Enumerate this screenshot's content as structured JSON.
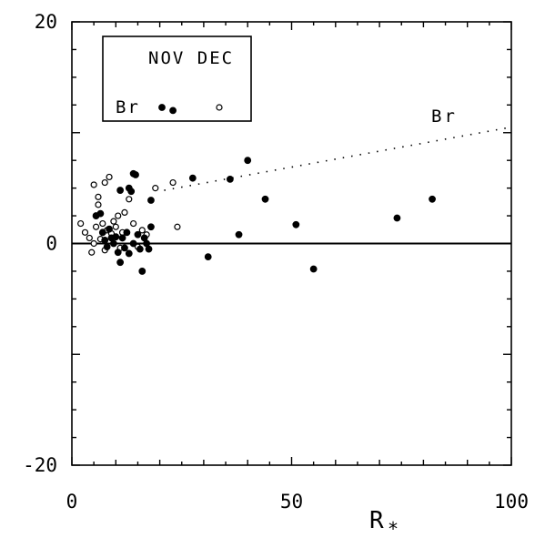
{
  "chart_data": {
    "type": "scatter",
    "title": "",
    "xlabel": "R*",
    "ylabel": "",
    "xlim": [
      0,
      100
    ],
    "ylim": [
      -20,
      20
    ],
    "grid": false,
    "legend_position": "top-left",
    "x_tick_labels": [
      "0",
      "50",
      "100"
    ],
    "y_tick_labels": [
      "20",
      "0",
      "-20"
    ],
    "legend": {
      "header": "NOV DEC",
      "row_label": "Br",
      "nov_marker": "filled-circle",
      "dec_marker": "open-circle"
    },
    "annotation": "Br",
    "zero_line": 0,
    "trend_line": {
      "style": "dotted",
      "points": [
        [
          21,
          4.8
        ],
        [
          100,
          10.5
        ]
      ]
    },
    "series": [
      {
        "name": "NOV",
        "marker": "filled",
        "points": [
          [
            5.5,
            2.5
          ],
          [
            6.5,
            2.7
          ],
          [
            7,
            1.0
          ],
          [
            7.5,
            0.3
          ],
          [
            8,
            -0.3
          ],
          [
            8.5,
            1.3
          ],
          [
            9,
            0.5
          ],
          [
            9.5,
            0.0
          ],
          [
            10,
            0.6
          ],
          [
            10.5,
            -0.8
          ],
          [
            11,
            -1.7
          ],
          [
            11,
            4.8
          ],
          [
            11.5,
            0.5
          ],
          [
            12,
            -0.4
          ],
          [
            12.5,
            1.0
          ],
          [
            13,
            -0.9
          ],
          [
            13,
            5.0
          ],
          [
            13.5,
            4.7
          ],
          [
            14,
            0.0
          ],
          [
            14,
            6.3
          ],
          [
            14.5,
            6.2
          ],
          [
            15,
            0.8
          ],
          [
            15.5,
            -0.5
          ],
          [
            16,
            -2.5
          ],
          [
            16.5,
            0.5
          ],
          [
            17,
            0.0
          ],
          [
            17.5,
            -0.5
          ],
          [
            18,
            1.5
          ],
          [
            18,
            3.9
          ],
          [
            23,
            12.0
          ],
          [
            27.5,
            5.9
          ],
          [
            31,
            -1.2
          ],
          [
            36,
            5.8
          ],
          [
            38,
            0.8
          ],
          [
            40,
            7.5
          ],
          [
            44,
            4.0
          ],
          [
            51,
            1.7
          ],
          [
            55,
            -2.3
          ],
          [
            74,
            2.3
          ],
          [
            82,
            4.0
          ]
        ]
      },
      {
        "name": "DEC",
        "marker": "open",
        "points": [
          [
            2,
            1.8
          ],
          [
            3,
            1.0
          ],
          [
            4,
            0.5
          ],
          [
            4.5,
            -0.8
          ],
          [
            5,
            0.0
          ],
          [
            5,
            5.3
          ],
          [
            5.5,
            1.5
          ],
          [
            6,
            3.5
          ],
          [
            6,
            4.2
          ],
          [
            6.5,
            0.4
          ],
          [
            7,
            1.8
          ],
          [
            7.5,
            -0.6
          ],
          [
            7.5,
            5.5
          ],
          [
            8,
            1.2
          ],
          [
            8.5,
            6.0
          ],
          [
            9,
            0.9
          ],
          [
            9.5,
            2.0
          ],
          [
            10,
            1.5
          ],
          [
            10.5,
            2.5
          ],
          [
            11,
            -0.4
          ],
          [
            11.5,
            1.0
          ],
          [
            12,
            2.8
          ],
          [
            13,
            4.0
          ],
          [
            14,
            1.8
          ],
          [
            15,
            -0.3
          ],
          [
            16,
            1.2
          ],
          [
            17,
            0.8
          ],
          [
            19,
            5.0
          ],
          [
            23,
            5.5
          ],
          [
            24,
            1.5
          ]
        ]
      }
    ]
  }
}
